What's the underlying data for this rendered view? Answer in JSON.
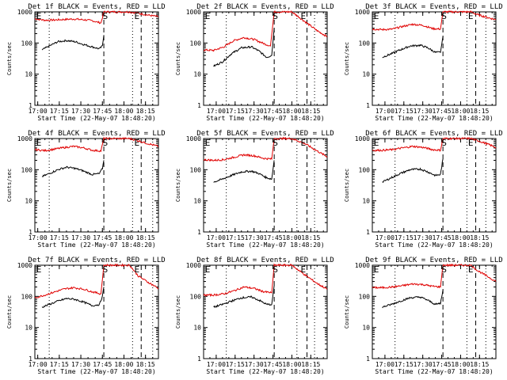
{
  "colors": {
    "events": "#000000",
    "lld": "#e00000",
    "axis": "#000000"
  },
  "chart_data": [
    {
      "type": "line",
      "title": "Det 1f BLACK = Events, RED = LLD",
      "ylabel": "Counts/sec",
      "xlabel": "Start Time (22-May-07 18:48:20)",
      "ylog": true,
      "ylim": [
        1,
        1000
      ],
      "xlim": [
        "16:58",
        "18:24"
      ],
      "yticks": [
        "1",
        "10",
        "100",
        "1000"
      ],
      "xticks": [
        "17:00",
        "17:15",
        "17:30",
        "17:45",
        "18:00",
        "18:15"
      ],
      "markers": [
        {
          "label": "E",
          "time": "16:58"
        },
        {
          "label": "S",
          "time": "17:47"
        },
        {
          "label": "E",
          "time": "18:09"
        }
      ],
      "dotted_times": [
        "17:08",
        "18:06",
        "18:20"
      ],
      "dashed_times": [
        "17:46",
        "18:12"
      ],
      "series": [
        {
          "x": [
            "16:58",
            "17:05",
            "17:12",
            "17:18",
            "17:25",
            "17:32",
            "17:38",
            "17:44",
            "17:46",
            "17:49",
            "17:56",
            "18:04",
            "18:10",
            "18:16",
            "18:24"
          ],
          "y": [
            600,
            540,
            550,
            570,
            590,
            560,
            520,
            440,
            1000,
            1000,
            1000,
            1000,
            900,
            800,
            700
          ]
        },
        {
          "x": [
            "17:03",
            "17:08",
            "17:14",
            "17:20",
            "17:26",
            "17:32",
            "17:38",
            "17:43",
            "17:45",
            "17:46"
          ],
          "y": [
            60,
            80,
            110,
            120,
            110,
            90,
            75,
            65,
            80,
            180
          ]
        }
      ]
    },
    {
      "type": "line",
      "title": "Det 2f BLACK = Events, RED = LLD",
      "ylabel": "Counts/sec",
      "xlabel": "Start Time (22-May-07 18:48:20)",
      "ylog": true,
      "ylim": [
        1,
        1000
      ],
      "xlim": [
        "16:50",
        "18:28"
      ],
      "yticks": [
        "1",
        "10",
        "100",
        "1000"
      ],
      "xticks": [
        "17:00",
        "17:15",
        "17:30",
        "17:45",
        "18:00",
        "18:15"
      ],
      "markers": [
        {
          "label": "E",
          "time": "16:50"
        },
        {
          "label": "S",
          "time": "17:47"
        },
        {
          "label": "E",
          "time": "18:09"
        }
      ],
      "dotted_times": [
        "17:08",
        "18:04",
        "18:18"
      ],
      "dashed_times": [
        "17:46",
        "18:12"
      ],
      "series": [
        {
          "x": [
            "16:50",
            "16:58",
            "17:06",
            "17:14",
            "17:22",
            "17:30",
            "17:38",
            "17:43",
            "17:46",
            "17:52",
            "18:00",
            "18:10",
            "18:20",
            "18:28"
          ],
          "y": [
            60,
            58,
            75,
            120,
            150,
            130,
            95,
            80,
            1000,
            1000,
            1000,
            500,
            250,
            160
          ]
        },
        {
          "x": [
            "16:58",
            "17:05",
            "17:12",
            "17:20",
            "17:28",
            "17:34",
            "17:40",
            "17:44",
            "17:46"
          ],
          "y": [
            18,
            25,
            45,
            70,
            75,
            55,
            35,
            40,
            300
          ]
        }
      ]
    },
    {
      "type": "line",
      "title": "Det 3f BLACK = Events, RED = LLD",
      "ylabel": "Counts/sec",
      "xlabel": "Start Time (22-May-07 18:48:20)",
      "ylog": true,
      "ylim": [
        1,
        1000
      ],
      "xlim": [
        "16:50",
        "18:28"
      ],
      "yticks": [
        "1",
        "10",
        "100",
        "1000"
      ],
      "xticks": [
        "17:00",
        "17:15",
        "17:30",
        "17:45",
        "18:00",
        "18:15"
      ],
      "markers": [
        {
          "label": "E",
          "time": "16:50"
        },
        {
          "label": "S",
          "time": "17:47"
        },
        {
          "label": "E",
          "time": "18:08"
        }
      ],
      "dotted_times": [
        "17:08",
        "18:05",
        "18:20"
      ],
      "dashed_times": [
        "17:46",
        "18:12"
      ],
      "series": [
        {
          "x": [
            "16:50",
            "16:58",
            "17:06",
            "17:14",
            "17:22",
            "17:30",
            "17:38",
            "17:44",
            "17:46",
            "17:52",
            "18:00",
            "18:08",
            "18:14",
            "18:22",
            "18:28"
          ],
          "y": [
            280,
            270,
            280,
            340,
            400,
            370,
            290,
            280,
            1000,
            1000,
            1000,
            1000,
            800,
            650,
            560
          ]
        },
        {
          "x": [
            "16:58",
            "17:05",
            "17:12",
            "17:20",
            "17:28",
            "17:34",
            "17:40",
            "17:44",
            "17:46"
          ],
          "y": [
            35,
            45,
            60,
            80,
            85,
            70,
            50,
            50,
            160
          ]
        }
      ]
    },
    {
      "type": "line",
      "title": "Det 4f BLACK = Events, RED = LLD",
      "ylabel": "Counts/sec",
      "xlabel": "Start Time (22-May-07 18:48:20)",
      "ylog": true,
      "ylim": [
        1,
        1000
      ],
      "xlim": [
        "16:58",
        "18:24"
      ],
      "yticks": [
        "1",
        "10",
        "100",
        "1000"
      ],
      "xticks": [
        "17:00",
        "17:15",
        "17:30",
        "17:45",
        "18:00",
        "18:15"
      ],
      "markers": [
        {
          "label": "E",
          "time": "16:58"
        },
        {
          "label": "S",
          "time": "17:47"
        },
        {
          "label": "E",
          "time": "18:09"
        }
      ],
      "dotted_times": [
        "17:08",
        "18:06",
        "18:20"
      ],
      "dashed_times": [
        "17:46",
        "18:12"
      ],
      "series": [
        {
          "x": [
            "16:58",
            "17:05",
            "17:12",
            "17:18",
            "17:25",
            "17:32",
            "17:38",
            "17:44",
            "17:46",
            "17:49",
            "17:56",
            "18:04",
            "18:10",
            "18:16",
            "18:24"
          ],
          "y": [
            440,
            410,
            460,
            510,
            560,
            500,
            420,
            400,
            1000,
            1000,
            1000,
            1000,
            850,
            700,
            560
          ]
        },
        {
          "x": [
            "17:03",
            "17:08",
            "17:14",
            "17:20",
            "17:26",
            "17:32",
            "17:38",
            "17:43",
            "17:45",
            "17:46"
          ],
          "y": [
            60,
            75,
            100,
            120,
            110,
            90,
            70,
            75,
            110,
            200
          ]
        }
      ]
    },
    {
      "type": "line",
      "title": "Det 5f BLACK = Events, RED = LLD",
      "ylabel": "Counts/sec",
      "xlabel": "Start Time (22-May-07 18:48:20)",
      "ylog": true,
      "ylim": [
        1,
        1000
      ],
      "xlim": [
        "16:50",
        "18:28"
      ],
      "yticks": [
        "1",
        "10",
        "100",
        "1000"
      ],
      "xticks": [
        "17:00",
        "17:15",
        "17:30",
        "17:45",
        "18:00",
        "18:15"
      ],
      "markers": [
        {
          "label": "E",
          "time": "16:50"
        },
        {
          "label": "S",
          "time": "17:47"
        },
        {
          "label": "E",
          "time": "18:09"
        }
      ],
      "dotted_times": [
        "17:08",
        "18:04",
        "18:18"
      ],
      "dashed_times": [
        "17:46",
        "18:12"
      ],
      "series": [
        {
          "x": [
            "16:50",
            "16:58",
            "17:06",
            "17:14",
            "17:22",
            "17:30",
            "17:38",
            "17:44",
            "17:46",
            "17:52",
            "18:00",
            "18:10",
            "18:20",
            "18:28"
          ],
          "y": [
            210,
            200,
            210,
            250,
            300,
            280,
            230,
            220,
            1000,
            1000,
            1000,
            700,
            400,
            260
          ]
        },
        {
          "x": [
            "16:58",
            "17:05",
            "17:12",
            "17:20",
            "17:28",
            "17:34",
            "17:40",
            "17:44",
            "17:46"
          ],
          "y": [
            40,
            50,
            65,
            85,
            90,
            75,
            55,
            50,
            200
          ]
        }
      ]
    },
    {
      "type": "line",
      "title": "Det 6f BLACK = Events, RED = LLD",
      "ylabel": "Counts/sec",
      "xlabel": "Start Time (22-May-07 18:48:20)",
      "ylog": true,
      "ylim": [
        1,
        1000
      ],
      "xlim": [
        "16:50",
        "18:28"
      ],
      "yticks": [
        "1",
        "10",
        "100",
        "1000"
      ],
      "xticks": [
        "17:00",
        "17:15",
        "17:30",
        "17:45",
        "18:00",
        "18:15"
      ],
      "markers": [
        {
          "label": "E",
          "time": "16:50"
        },
        {
          "label": "S",
          "time": "17:47"
        },
        {
          "label": "E",
          "time": "18:08"
        }
      ],
      "dotted_times": [
        "17:08",
        "18:05",
        "18:20"
      ],
      "dashed_times": [
        "17:46",
        "18:12"
      ],
      "series": [
        {
          "x": [
            "16:50",
            "16:58",
            "17:06",
            "17:14",
            "17:22",
            "17:30",
            "17:38",
            "17:44",
            "17:46",
            "17:52",
            "18:00",
            "18:08",
            "18:14",
            "18:22",
            "18:28"
          ],
          "y": [
            420,
            420,
            440,
            500,
            560,
            520,
            440,
            420,
            1000,
            1000,
            1000,
            1000,
            850,
            650,
            520
          ]
        },
        {
          "x": [
            "16:58",
            "17:05",
            "17:12",
            "17:20",
            "17:28",
            "17:34",
            "17:40",
            "17:44",
            "17:46"
          ],
          "y": [
            40,
            55,
            75,
            100,
            105,
            85,
            65,
            70,
            220
          ]
        }
      ]
    },
    {
      "type": "line",
      "title": "Det 7f BLACK = Events, RED = LLD",
      "ylabel": "Counts/sec",
      "xlabel": "Start Time (22-May-07 18:48:20)",
      "ylog": true,
      "ylim": [
        1,
        1000
      ],
      "xlim": [
        "16:58",
        "18:24"
      ],
      "yticks": [
        "1",
        "10",
        "100",
        "1000"
      ],
      "xticks": [
        "17:00",
        "17:15",
        "17:30",
        "17:45",
        "18:00",
        "18:15"
      ],
      "markers": [
        {
          "label": "E",
          "time": "16:58"
        },
        {
          "label": "S",
          "time": "17:47"
        },
        {
          "label": "E",
          "time": "18:09"
        }
      ],
      "dotted_times": [
        "17:08",
        "18:06",
        "18:20"
      ],
      "dashed_times": [
        "17:46",
        "18:12"
      ],
      "series": [
        {
          "x": [
            "16:58",
            "17:05",
            "17:12",
            "17:18",
            "17:25",
            "17:32",
            "17:38",
            "17:44",
            "17:46",
            "17:49",
            "17:56",
            "18:04",
            "18:10",
            "18:16",
            "18:24"
          ],
          "y": [
            90,
            110,
            140,
            170,
            190,
            170,
            140,
            120,
            1000,
            1000,
            1000,
            1000,
            450,
            300,
            180
          ]
        },
        {
          "x": [
            "17:03",
            "17:08",
            "17:14",
            "17:20",
            "17:26",
            "17:32",
            "17:38",
            "17:43",
            "17:45",
            "17:46"
          ],
          "y": [
            45,
            55,
            70,
            85,
            80,
            65,
            50,
            55,
            100,
            200
          ]
        }
      ]
    },
    {
      "type": "line",
      "title": "Det 8f BLACK = Events, RED = LLD",
      "ylabel": "Counts/sec",
      "xlabel": "Start Time (22-May-07 18:48:20)",
      "ylog": true,
      "ylim": [
        1,
        1000
      ],
      "xlim": [
        "16:50",
        "18:28"
      ],
      "yticks": [
        "1",
        "10",
        "100",
        "1000"
      ],
      "xticks": [
        "17:00",
        "17:15",
        "17:30",
        "17:45",
        "18:00",
        "18:15"
      ],
      "markers": [
        {
          "label": "E",
          "time": "16:50"
        },
        {
          "label": "S",
          "time": "17:47"
        },
        {
          "label": "E",
          "time": "18:09"
        }
      ],
      "dotted_times": [
        "17:08",
        "18:04",
        "18:18"
      ],
      "dashed_times": [
        "17:46",
        "18:12"
      ],
      "series": [
        {
          "x": [
            "16:50",
            "16:58",
            "17:06",
            "17:14",
            "17:22",
            "17:30",
            "17:38",
            "17:44",
            "17:46",
            "17:52",
            "18:00",
            "18:10",
            "18:20",
            "18:28"
          ],
          "y": [
            110,
            110,
            120,
            150,
            200,
            180,
            140,
            130,
            1000,
            1000,
            1000,
            500,
            260,
            170
          ]
        },
        {
          "x": [
            "16:58",
            "17:05",
            "17:12",
            "17:20",
            "17:28",
            "17:34",
            "17:40",
            "17:44",
            "17:46"
          ],
          "y": [
            45,
            55,
            70,
            90,
            95,
            75,
            55,
            55,
            220
          ]
        }
      ]
    },
    {
      "type": "line",
      "title": "Det 9f BLACK = Events, RED = LLD",
      "ylabel": "Counts/sec",
      "xlabel": "Start Time (22-May-07 18:48:20)",
      "ylog": true,
      "ylim": [
        1,
        1000
      ],
      "xlim": [
        "16:50",
        "18:28"
      ],
      "yticks": [
        "1",
        "10",
        "100",
        "1000"
      ],
      "xticks": [
        "17:00",
        "17:15",
        "17:30",
        "17:45",
        "18:00",
        "18:15"
      ],
      "markers": [
        {
          "label": "E",
          "time": "16:50"
        },
        {
          "label": "S",
          "time": "17:47"
        },
        {
          "label": "E",
          "time": "18:08"
        }
      ],
      "dotted_times": [
        "17:08",
        "18:05",
        "18:20"
      ],
      "dashed_times": [
        "17:46",
        "18:12"
      ],
      "series": [
        {
          "x": [
            "16:50",
            "16:58",
            "17:06",
            "17:14",
            "17:22",
            "17:30",
            "17:38",
            "17:44",
            "17:46",
            "17:52",
            "18:00",
            "18:08",
            "18:14",
            "18:22",
            "18:28"
          ],
          "y": [
            190,
            190,
            200,
            220,
            250,
            240,
            210,
            200,
            1000,
            1000,
            1000,
            1000,
            650,
            420,
            300
          ]
        },
        {
          "x": [
            "16:58",
            "17:05",
            "17:12",
            "17:20",
            "17:28",
            "17:34",
            "17:40",
            "17:44",
            "17:46"
          ],
          "y": [
            45,
            55,
            70,
            90,
            95,
            75,
            55,
            60,
            160
          ]
        }
      ]
    }
  ]
}
